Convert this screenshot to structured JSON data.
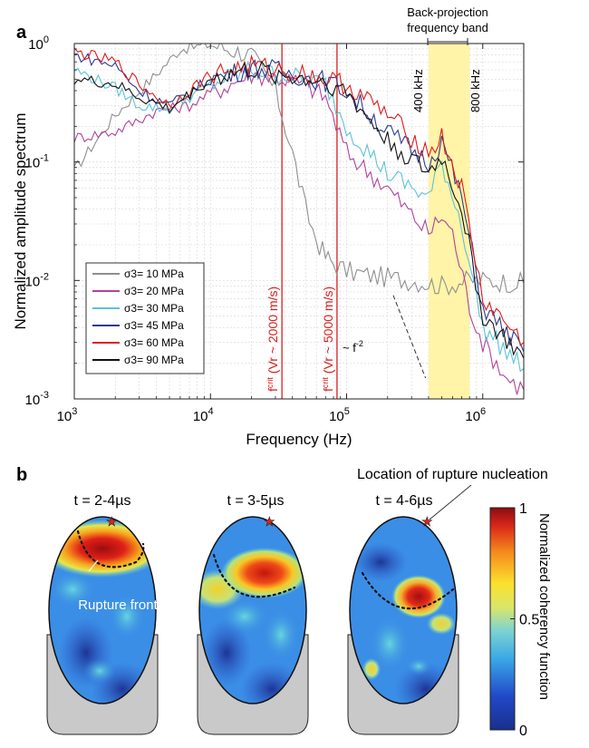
{
  "panel_labels": {
    "a": "a",
    "b": "b"
  },
  "chart_data": [
    {
      "type": "line",
      "panel": "a",
      "xlabel": "Frequency (Hz)",
      "ylabel": "Normalized amplitude spectrum",
      "xscale": "log",
      "yscale": "log",
      "xlim": [
        1000,
        2000000
      ],
      "ylim": [
        0.001,
        1
      ],
      "x_ticks": [
        1000,
        10000,
        100000,
        1000000
      ],
      "x_tick_labels": [
        {
          "base": "10",
          "exp": "3"
        },
        {
          "base": "10",
          "exp": "4"
        },
        {
          "base": "10",
          "exp": "5"
        },
        {
          "base": "10",
          "exp": "6"
        }
      ],
      "y_ticks": [
        0.001,
        0.01,
        0.1,
        1
      ],
      "y_tick_labels": [
        {
          "base": "10",
          "exp": "-3"
        },
        {
          "base": "10",
          "exp": "-2"
        },
        {
          "base": "10",
          "exp": "-1"
        },
        {
          "base": "10",
          "exp": "0"
        }
      ],
      "grid": true,
      "legend_position": "bottom-left",
      "series": [
        {
          "name": "σ3= 10 MPa",
          "color": "#8f8f8f",
          "x": [
            1000,
            2000,
            4000,
            6000,
            10000,
            20000,
            30000,
            40000,
            50000,
            60000,
            70000,
            80000,
            100000,
            150000,
            300000,
            500000,
            800000,
            1000000,
            2000000
          ],
          "y": [
            0.085,
            0.25,
            0.55,
            0.9,
            0.98,
            0.8,
            0.4,
            0.12,
            0.04,
            0.022,
            0.016,
            0.014,
            0.012,
            0.011,
            0.01,
            0.009,
            0.01,
            0.01,
            0.0095
          ]
        },
        {
          "name": "σ3= 20 MPa",
          "color": "#b0439a",
          "x": [
            1000,
            2000,
            4000,
            7000,
            10000,
            20000,
            30000,
            50000,
            70000,
            100000,
            200000,
            400000,
            500000,
            600000,
            800000,
            1000000,
            1500000,
            2000000
          ],
          "y": [
            0.16,
            0.18,
            0.27,
            0.3,
            0.38,
            0.55,
            0.52,
            0.45,
            0.35,
            0.12,
            0.06,
            0.025,
            0.035,
            0.025,
            0.006,
            0.003,
            0.0015,
            0.0012
          ]
        },
        {
          "name": "σ3= 30 MPa",
          "color": "#5bc2d6",
          "x": [
            1000,
            2000,
            3000,
            5000,
            10000,
            20000,
            30000,
            50000,
            70000,
            100000,
            200000,
            400000,
            500000,
            700000,
            1000000,
            2000000
          ],
          "y": [
            0.6,
            0.42,
            0.3,
            0.28,
            0.45,
            0.6,
            0.55,
            0.5,
            0.45,
            0.2,
            0.08,
            0.05,
            0.1,
            0.03,
            0.004,
            0.0018
          ]
        },
        {
          "name": "σ3= 45 MPa",
          "color": "#2d3a8c",
          "x": [
            1000,
            2000,
            3000,
            5000,
            10000,
            20000,
            30000,
            50000,
            70000,
            100000,
            200000,
            400000,
            500000,
            700000,
            1000000,
            2000000
          ],
          "y": [
            0.8,
            0.65,
            0.4,
            0.3,
            0.5,
            0.62,
            0.6,
            0.52,
            0.48,
            0.4,
            0.18,
            0.1,
            0.15,
            0.05,
            0.006,
            0.0025
          ]
        },
        {
          "name": "σ3= 60 MPa",
          "color": "#e01a1a",
          "x": [
            1000,
            2000,
            3000,
            5000,
            10000,
            20000,
            30000,
            50000,
            70000,
            100000,
            200000,
            400000,
            500000,
            700000,
            1000000,
            2000000
          ],
          "y": [
            0.85,
            0.7,
            0.45,
            0.3,
            0.55,
            0.65,
            0.6,
            0.55,
            0.5,
            0.45,
            0.25,
            0.12,
            0.16,
            0.06,
            0.007,
            0.003
          ]
        },
        {
          "name": "σ3= 90 MPa",
          "color": "#111111",
          "x": [
            1000,
            2000,
            3000,
            5000,
            10000,
            20000,
            30000,
            50000,
            70000,
            100000,
            200000,
            400000,
            500000,
            700000,
            1000000,
            2000000
          ],
          "y": [
            0.5,
            0.45,
            0.35,
            0.28,
            0.5,
            0.6,
            0.55,
            0.5,
            0.48,
            0.38,
            0.15,
            0.08,
            0.11,
            0.04,
            0.005,
            0.0022
          ]
        }
      ],
      "vlines": [
        {
          "x": 33500,
          "label_main": "f",
          "label_sub": "crit",
          "label_rest": " (Vr ~ 2000 m/s)",
          "color": "#d42020"
        },
        {
          "x": 85000,
          "label_main": "f",
          "label_sub": "crit",
          "label_rest": " (Vr ~ 5000 m/s)",
          "color": "#d42020"
        }
      ],
      "band": {
        "x0": 400000,
        "x1": 800000,
        "color": "#fff4a8",
        "title_line1": "Back-projection",
        "title_line2": "frequency band",
        "label_low": "400 kHz",
        "label_high": "800 kHz"
      },
      "slope_annotation": {
        "text_main": "~ f",
        "text_exp": "-2",
        "line_x": [
          220000,
          380000
        ],
        "line_y": [
          0.0075,
          0.0015
        ]
      }
    },
    {
      "type": "heatmap",
      "panel": "b",
      "colorbar": {
        "label": "Normalized coherency function",
        "ticks": [
          0,
          0.5,
          1
        ],
        "tick_labels": [
          "0",
          "0.5",
          "1"
        ],
        "colormap": "jet"
      },
      "maps": [
        {
          "time_label": "t = 2-4µs",
          "annotation": "Rupture front"
        },
        {
          "time_label": "t = 3-5µs",
          "annotation": ""
        },
        {
          "time_label": "t = 4-6µs",
          "annotation": "Location of rupture nucleation"
        }
      ]
    }
  ]
}
